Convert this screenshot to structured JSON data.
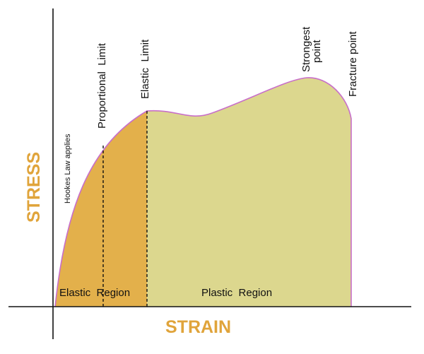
{
  "diagram": {
    "axes": {
      "y_title": "STRESS",
      "x_title": "STRAIN"
    },
    "regions": {
      "elastic": "Elastic  Region",
      "plastic": "Plastic  Region"
    },
    "annotations": {
      "hookes_law": "Hookes Law applies",
      "proportional_limit": "Proportional  Limit",
      "elastic_limit": "Elastic  Limit",
      "strongest_point_line1": "Strongest",
      "strongest_point_line2": "point",
      "fracture_point": "Fracture point"
    },
    "colors": {
      "elastic_fill": "#E3B04B",
      "plastic_fill": "#DCD78E",
      "curve_outline": "#C86FC9",
      "axis_title": "#E0A43B",
      "axis_line": "#111111"
    }
  }
}
